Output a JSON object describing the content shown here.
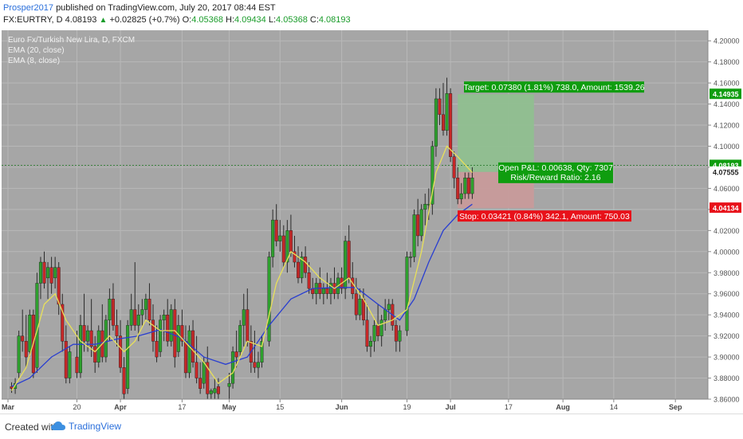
{
  "header": {
    "username": "Prosper2017",
    "published_text": "published on TradingView.com, July 20, 2017 08:44 EST",
    "symbol_line": "FX:EURTRY, D",
    "price": "4.08193",
    "change": "+0.02825 (+0.7%)",
    "o_label": "O:",
    "o_value": "4.05368",
    "h_label": "H:",
    "h_value": "4.09434",
    "l_label": "L:",
    "l_value": "4.05368",
    "c_label": "C:",
    "c_value": "4.08193"
  },
  "legend": {
    "series": "Euro Fx/Turkish New Lira, D, FXCM",
    "ema20": "EMA (20, close)",
    "ema8": "EMA (8, close)"
  },
  "footer": {
    "created": "Created with",
    "brand": "TradingView"
  },
  "colors": {
    "background": "#a6a6a6",
    "bull": "#2ea02e",
    "bear": "#c62828",
    "ema20": "#2a3fd0",
    "ema8": "#e8e05a",
    "target_fill": "#8fbf8f",
    "stop_fill": "#c79a9a",
    "target_label": "#0f9d0f",
    "stop_label": "#e8111a",
    "price_line": "#2e7d32"
  },
  "chart_data": {
    "type": "candlestick",
    "y_range": [
      3.86,
      4.21
    ],
    "y_ticks": [
      "4.20000",
      "4.18000",
      "4.16000",
      "4.14000",
      "4.12000",
      "4.10000",
      "4.08000",
      "4.06000",
      "4.04000",
      "4.02000",
      "4.00000",
      "3.98000",
      "3.96000",
      "3.94000",
      "3.92000",
      "3.90000",
      "3.88000",
      "3.86000"
    ],
    "x_ticks": [
      "Mar",
      "20",
      "Apr",
      "17",
      "May",
      "15",
      "Jun",
      "19",
      "Jul",
      "17",
      "Aug",
      "14",
      "Sep"
    ],
    "x_tick_days": [
      0,
      19,
      31,
      48,
      61,
      75,
      92,
      110,
      122,
      138,
      153,
      167,
      184
    ],
    "days_span": 190,
    "candles": [
      [
        1,
        3.872,
        3.876,
        3.866,
        3.87
      ],
      [
        2,
        3.87,
        3.88,
        3.865,
        3.875
      ],
      [
        3,
        3.885,
        3.925,
        3.88,
        3.92
      ],
      [
        4,
        3.92,
        3.945,
        3.905,
        3.915
      ],
      [
        5,
        3.915,
        3.94,
        3.89,
        3.9
      ],
      [
        6,
        3.905,
        3.945,
        3.9,
        3.94
      ],
      [
        7,
        3.94,
        3.945,
        3.88,
        3.885
      ],
      [
        8,
        3.89,
        3.98,
        3.885,
        3.97
      ],
      [
        9,
        3.97,
        3.995,
        3.955,
        3.99
      ],
      [
        10,
        3.99,
        4.0,
        3.965,
        3.97
      ],
      [
        11,
        3.975,
        3.99,
        3.955,
        3.985
      ],
      [
        12,
        3.985,
        3.995,
        3.96,
        3.97
      ],
      [
        13,
        3.975,
        3.995,
        3.965,
        3.985
      ],
      [
        14,
        3.985,
        3.99,
        3.94,
        3.95
      ],
      [
        15,
        3.95,
        3.96,
        3.905,
        3.915
      ],
      [
        16,
        3.915,
        3.93,
        3.875,
        3.88
      ],
      [
        17,
        3.88,
        3.91,
        3.875,
        3.905
      ],
      [
        19,
        3.9,
        3.925,
        3.88,
        3.885
      ],
      [
        20,
        3.885,
        3.94,
        3.88,
        3.93
      ],
      [
        21,
        3.93,
        3.96,
        3.905,
        3.915
      ],
      [
        22,
        3.915,
        3.93,
        3.905,
        3.925
      ],
      [
        23,
        3.925,
        3.955,
        3.9,
        3.91
      ],
      [
        24,
        3.91,
        3.92,
        3.885,
        3.895
      ],
      [
        25,
        3.895,
        3.93,
        3.89,
        3.925
      ],
      [
        26,
        3.925,
        3.95,
        3.895,
        3.9
      ],
      [
        27,
        3.9,
        3.94,
        3.895,
        3.935
      ],
      [
        28,
        3.935,
        3.965,
        3.915,
        3.955
      ],
      [
        29,
        3.955,
        3.97,
        3.925,
        3.93
      ],
      [
        30,
        3.93,
        3.945,
        3.91,
        3.92
      ],
      [
        31,
        3.92,
        3.935,
        3.885,
        3.89
      ],
      [
        32,
        3.89,
        3.9,
        3.86,
        3.865
      ],
      [
        33,
        3.87,
        3.935,
        3.865,
        3.93
      ],
      [
        34,
        3.93,
        3.96,
        3.925,
        3.945
      ],
      [
        35,
        3.945,
        3.99,
        3.925,
        3.93
      ],
      [
        36,
        3.93,
        3.95,
        3.915,
        3.94
      ],
      [
        37,
        3.94,
        3.955,
        3.93,
        3.945
      ],
      [
        38,
        3.945,
        3.96,
        3.935,
        3.955
      ],
      [
        39,
        3.955,
        3.97,
        3.93,
        3.935
      ],
      [
        40,
        3.935,
        3.95,
        3.905,
        3.915
      ],
      [
        41,
        3.915,
        3.93,
        3.895,
        3.9
      ],
      [
        42,
        3.905,
        3.94,
        3.9,
        3.935
      ],
      [
        43,
        3.935,
        3.945,
        3.915,
        3.94
      ],
      [
        44,
        3.94,
        3.955,
        3.91,
        3.915
      ],
      [
        45,
        3.915,
        3.95,
        3.91,
        3.945
      ],
      [
        46,
        3.945,
        3.955,
        3.89,
        3.9
      ],
      [
        47,
        3.905,
        3.94,
        3.9,
        3.93
      ],
      [
        48,
        3.93,
        3.945,
        3.91,
        3.915
      ],
      [
        49,
        3.915,
        3.93,
        3.88,
        3.885
      ],
      [
        50,
        3.885,
        3.93,
        3.88,
        3.925
      ],
      [
        51,
        3.925,
        3.935,
        3.89,
        3.895
      ],
      [
        52,
        3.895,
        3.92,
        3.875,
        3.88
      ],
      [
        53,
        3.88,
        3.895,
        3.865,
        3.87
      ],
      [
        54,
        3.875,
        3.9,
        3.87,
        3.895
      ],
      [
        55,
        3.895,
        3.91,
        3.86,
        3.865
      ],
      [
        56,
        3.865,
        3.87,
        3.855,
        3.868
      ],
      [
        57,
        3.866,
        3.88,
        3.855,
        3.87
      ],
      [
        58,
        3.872,
        3.88,
        3.86,
        3.865
      ],
      [
        61,
        3.872,
        3.885,
        3.86,
        3.875
      ],
      [
        62,
        3.875,
        3.91,
        3.87,
        3.905
      ],
      [
        63,
        3.905,
        3.925,
        3.89,
        3.9
      ],
      [
        64,
        3.905,
        3.935,
        3.9,
        3.93
      ],
      [
        65,
        3.93,
        3.96,
        3.91,
        3.945
      ],
      [
        66,
        3.945,
        3.965,
        3.91,
        3.915
      ],
      [
        67,
        3.915,
        3.93,
        3.885,
        3.895
      ],
      [
        68,
        3.895,
        3.925,
        3.885,
        3.89
      ],
      [
        69,
        3.89,
        3.905,
        3.88,
        3.895
      ],
      [
        70,
        3.895,
        3.92,
        3.89,
        3.915
      ],
      [
        72,
        3.915,
        4.0,
        3.91,
        3.995
      ],
      [
        73,
        3.995,
        4.04,
        3.985,
        4.03
      ],
      [
        74,
        4.03,
        4.045,
        4.005,
        4.01
      ],
      [
        75,
        4.01,
        4.03,
        4.0,
        4.015
      ],
      [
        76,
        4.015,
        4.025,
        3.985,
        3.99
      ],
      [
        77,
        3.99,
        4.03,
        3.98,
        4.02
      ],
      [
        78,
        4.02,
        4.035,
        3.995,
        4.0
      ],
      [
        79,
        4.0,
        4.015,
        3.985,
        3.99
      ],
      [
        80,
        3.99,
        4.005,
        3.97,
        3.975
      ],
      [
        81,
        3.975,
        4.0,
        3.97,
        3.995
      ],
      [
        82,
        3.995,
        4.005,
        3.975,
        3.98
      ],
      [
        83,
        3.98,
        3.99,
        3.96,
        3.965
      ],
      [
        84,
        3.965,
        3.975,
        3.955,
        3.96
      ],
      [
        85,
        3.96,
        3.975,
        3.95,
        3.97
      ],
      [
        86,
        3.97,
        3.985,
        3.955,
        3.96
      ],
      [
        87,
        3.96,
        3.97,
        3.95,
        3.965
      ],
      [
        88,
        3.965,
        3.98,
        3.955,
        3.96
      ],
      [
        89,
        3.96,
        3.975,
        3.95,
        3.97
      ],
      [
        90,
        3.97,
        3.985,
        3.955,
        3.96
      ],
      [
        91,
        3.96,
        3.98,
        3.955,
        3.975
      ],
      [
        92,
        3.975,
        3.985,
        3.96,
        3.965
      ],
      [
        93,
        3.965,
        4.015,
        3.955,
        4.01
      ],
      [
        94,
        4.01,
        4.025,
        3.97,
        3.975
      ],
      [
        95,
        3.975,
        3.99,
        3.955,
        3.96
      ],
      [
        96,
        3.96,
        3.975,
        3.935,
        3.94
      ],
      [
        97,
        3.94,
        3.965,
        3.935,
        3.955
      ],
      [
        98,
        3.955,
        3.965,
        3.93,
        3.935
      ],
      [
        99,
        3.935,
        3.95,
        3.905,
        3.91
      ],
      [
        100,
        3.91,
        3.92,
        3.9,
        3.915
      ],
      [
        101,
        3.915,
        3.935,
        3.905,
        3.93
      ],
      [
        102,
        3.93,
        3.95,
        3.915,
        3.92
      ],
      [
        103,
        3.92,
        3.94,
        3.91,
        3.935
      ],
      [
        104,
        3.935,
        3.955,
        3.925,
        3.945
      ],
      [
        105,
        3.945,
        3.955,
        3.935,
        3.95
      ],
      [
        106,
        3.95,
        3.955,
        3.925,
        3.93
      ],
      [
        107,
        3.93,
        3.935,
        3.905,
        3.915
      ],
      [
        108,
        3.915,
        3.93,
        3.905,
        3.925
      ],
      [
        110,
        3.925,
        4.0,
        3.92,
        3.995
      ],
      [
        111,
        3.995,
        4.0,
        3.985,
        3.995
      ],
      [
        112,
        3.995,
        4.04,
        3.99,
        4.035
      ],
      [
        113,
        4.035,
        4.05,
        4.005,
        4.015
      ],
      [
        114,
        4.015,
        4.045,
        4.01,
        4.04
      ],
      [
        115,
        4.04,
        4.055,
        4.025,
        4.045
      ],
      [
        116,
        4.045,
        4.06,
        4.03,
        4.045
      ],
      [
        117,
        4.045,
        4.105,
        4.035,
        4.1
      ],
      [
        118,
        4.1,
        4.155,
        4.09,
        4.145
      ],
      [
        119,
        4.145,
        4.155,
        4.12,
        4.13
      ],
      [
        120,
        4.13,
        4.16,
        4.11,
        4.115
      ],
      [
        121,
        4.115,
        4.165,
        4.11,
        4.15
      ],
      [
        122,
        4.15,
        4.155,
        4.085,
        4.09
      ],
      [
        123,
        4.09,
        4.095,
        4.06,
        4.07
      ],
      [
        124,
        4.07,
        4.08,
        4.045,
        4.05
      ],
      [
        125,
        4.05,
        4.065,
        4.045,
        4.055
      ],
      [
        126,
        4.055,
        4.075,
        4.05,
        4.07
      ],
      [
        127,
        4.07,
        4.075,
        4.05,
        4.055
      ],
      [
        128,
        4.055,
        4.08,
        4.05,
        4.07
      ]
    ],
    "ema8": [
      [
        1,
        3.868
      ],
      [
        5,
        3.89
      ],
      [
        8,
        3.925
      ],
      [
        10,
        3.95
      ],
      [
        13,
        3.96
      ],
      [
        16,
        3.935
      ],
      [
        20,
        3.915
      ],
      [
        24,
        3.905
      ],
      [
        28,
        3.92
      ],
      [
        32,
        3.905
      ],
      [
        35,
        3.915
      ],
      [
        38,
        3.935
      ],
      [
        42,
        3.925
      ],
      [
        46,
        3.925
      ],
      [
        50,
        3.91
      ],
      [
        54,
        3.895
      ],
      [
        58,
        3.875
      ],
      [
        62,
        3.885
      ],
      [
        66,
        3.915
      ],
      [
        70,
        3.91
      ],
      [
        74,
        3.97
      ],
      [
        78,
        4.0
      ],
      [
        82,
        3.99
      ],
      [
        86,
        3.975
      ],
      [
        90,
        3.965
      ],
      [
        94,
        3.975
      ],
      [
        98,
        3.955
      ],
      [
        102,
        3.93
      ],
      [
        106,
        3.935
      ],
      [
        110,
        3.945
      ],
      [
        114,
        4.0
      ],
      [
        118,
        4.075
      ],
      [
        121,
        4.1
      ],
      [
        124,
        4.09
      ],
      [
        128,
        4.075
      ]
    ],
    "ema20": [
      [
        1,
        3.872
      ],
      [
        6,
        3.88
      ],
      [
        12,
        3.9
      ],
      [
        18,
        3.912
      ],
      [
        24,
        3.912
      ],
      [
        30,
        3.917
      ],
      [
        36,
        3.92
      ],
      [
        42,
        3.926
      ],
      [
        48,
        3.918
      ],
      [
        54,
        3.9
      ],
      [
        60,
        3.893
      ],
      [
        66,
        3.9
      ],
      [
        72,
        3.93
      ],
      [
        78,
        3.955
      ],
      [
        84,
        3.965
      ],
      [
        90,
        3.966
      ],
      [
        96,
        3.966
      ],
      [
        102,
        3.95
      ],
      [
        108,
        3.935
      ],
      [
        112,
        3.955
      ],
      [
        116,
        3.99
      ],
      [
        120,
        4.02
      ],
      [
        124,
        4.035
      ],
      [
        128,
        4.045
      ]
    ],
    "position": {
      "start_day": 124,
      "end_day": 145,
      "entry": 4.07555,
      "target": 4.14935,
      "stop": 4.04134,
      "target_label": "Target: 0.07380 (1.81%) 738.0, Amount: 1539.26",
      "stop_label": "Stop: 0.03421 (0.84%) 342.1, Amount: 750.03",
      "center_label_1": "Open P&L: 0.00638, Qty: 7307",
      "center_label_2": "Risk/Reward Ratio: 2.16"
    },
    "price_line": 4.08193,
    "axis_labels": {
      "last": "4.08193",
      "target": "4.14935",
      "entry": "4.07555",
      "stop": "4.04134"
    }
  }
}
